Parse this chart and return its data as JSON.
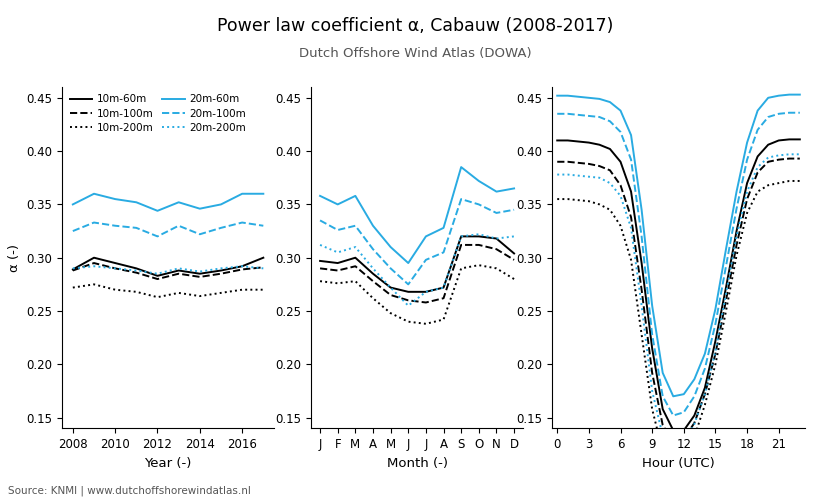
{
  "title": "Power law coefficient α, Cabauw (2008-2017)",
  "subtitle": "Dutch Offshore Wind Atlas (DOWA)",
  "source": "Source: KNMI | www.dutchoffshorewindatlas.nl",
  "ylabel": "α (-)",
  "ylim": [
    0.14,
    0.46
  ],
  "yticks": [
    0.15,
    0.2,
    0.25,
    0.3,
    0.35,
    0.4,
    0.45
  ],
  "panel1": {
    "xlabel": "Year (-)",
    "xticks": [
      2008,
      2010,
      2012,
      2014,
      2016
    ],
    "x": [
      2008,
      2009,
      2010,
      2011,
      2012,
      2013,
      2014,
      2015,
      2016,
      2017
    ],
    "black_solid": [
      0.289,
      0.3,
      0.295,
      0.29,
      0.283,
      0.288,
      0.285,
      0.288,
      0.292,
      0.3
    ],
    "black_dashed": [
      0.288,
      0.295,
      0.29,
      0.286,
      0.28,
      0.285,
      0.282,
      0.285,
      0.289,
      0.291
    ],
    "black_dotted": [
      0.272,
      0.275,
      0.27,
      0.268,
      0.263,
      0.267,
      0.264,
      0.267,
      0.27,
      0.27
    ],
    "cyan_solid": [
      0.35,
      0.36,
      0.355,
      0.352,
      0.344,
      0.352,
      0.346,
      0.35,
      0.36,
      0.36
    ],
    "cyan_dashed": [
      0.325,
      0.333,
      0.33,
      0.328,
      0.32,
      0.33,
      0.322,
      0.328,
      0.333,
      0.33
    ],
    "cyan_dotted": [
      0.29,
      0.292,
      0.29,
      0.288,
      0.285,
      0.29,
      0.287,
      0.29,
      0.292,
      0.29
    ]
  },
  "panel2": {
    "xlabel": "Month (-)",
    "xlabels": [
      "J",
      "F",
      "M",
      "A",
      "M",
      "J",
      "J",
      "A",
      "S",
      "O",
      "N",
      "D"
    ],
    "x": [
      0,
      1,
      2,
      3,
      4,
      5,
      6,
      7,
      8,
      9,
      10,
      11
    ],
    "black_solid": [
      0.297,
      0.295,
      0.3,
      0.285,
      0.272,
      0.268,
      0.268,
      0.272,
      0.32,
      0.32,
      0.318,
      0.304
    ],
    "black_dashed": [
      0.29,
      0.288,
      0.292,
      0.278,
      0.265,
      0.26,
      0.258,
      0.262,
      0.312,
      0.312,
      0.308,
      0.298
    ],
    "black_dotted": [
      0.278,
      0.276,
      0.278,
      0.262,
      0.248,
      0.24,
      0.238,
      0.242,
      0.29,
      0.293,
      0.29,
      0.28
    ],
    "cyan_solid": [
      0.358,
      0.35,
      0.358,
      0.33,
      0.31,
      0.295,
      0.32,
      0.328,
      0.385,
      0.372,
      0.362,
      0.365
    ],
    "cyan_dashed": [
      0.335,
      0.326,
      0.33,
      0.308,
      0.29,
      0.275,
      0.298,
      0.305,
      0.355,
      0.35,
      0.342,
      0.345
    ],
    "cyan_dotted": [
      0.312,
      0.305,
      0.31,
      0.29,
      0.272,
      0.255,
      0.268,
      0.272,
      0.32,
      0.322,
      0.318,
      0.32
    ]
  },
  "panel3": {
    "xlabel": "Hour (UTC)",
    "xticks": [
      0,
      3,
      6,
      9,
      12,
      15,
      18,
      21
    ],
    "x": [
      0,
      1,
      2,
      3,
      4,
      5,
      6,
      7,
      8,
      9,
      10,
      11,
      12,
      13,
      14,
      15,
      16,
      17,
      18,
      19,
      20,
      21,
      22,
      23
    ],
    "black_solid": [
      0.41,
      0.41,
      0.409,
      0.408,
      0.406,
      0.402,
      0.39,
      0.362,
      0.295,
      0.215,
      0.158,
      0.138,
      0.138,
      0.152,
      0.178,
      0.222,
      0.272,
      0.325,
      0.37,
      0.395,
      0.406,
      0.41,
      0.411,
      0.411
    ],
    "black_dashed": [
      0.39,
      0.39,
      0.389,
      0.388,
      0.386,
      0.382,
      0.368,
      0.338,
      0.27,
      0.192,
      0.143,
      0.127,
      0.13,
      0.145,
      0.172,
      0.21,
      0.26,
      0.312,
      0.355,
      0.38,
      0.39,
      0.392,
      0.393,
      0.393
    ],
    "black_dotted": [
      0.355,
      0.355,
      0.354,
      0.353,
      0.35,
      0.345,
      0.33,
      0.298,
      0.228,
      0.158,
      0.118,
      0.108,
      0.115,
      0.132,
      0.162,
      0.2,
      0.25,
      0.302,
      0.342,
      0.362,
      0.368,
      0.37,
      0.372,
      0.372
    ],
    "cyan_solid": [
      0.452,
      0.452,
      0.451,
      0.45,
      0.449,
      0.446,
      0.438,
      0.415,
      0.345,
      0.255,
      0.192,
      0.17,
      0.172,
      0.186,
      0.21,
      0.252,
      0.308,
      0.362,
      0.408,
      0.438,
      0.45,
      0.452,
      0.453,
      0.453
    ],
    "cyan_dashed": [
      0.435,
      0.435,
      0.434,
      0.433,
      0.432,
      0.428,
      0.418,
      0.392,
      0.32,
      0.228,
      0.17,
      0.152,
      0.155,
      0.17,
      0.196,
      0.238,
      0.292,
      0.346,
      0.392,
      0.42,
      0.432,
      0.435,
      0.436,
      0.436
    ],
    "cyan_dotted": [
      0.378,
      0.378,
      0.377,
      0.376,
      0.375,
      0.37,
      0.358,
      0.328,
      0.255,
      0.175,
      0.133,
      0.12,
      0.126,
      0.144,
      0.172,
      0.212,
      0.266,
      0.32,
      0.362,
      0.385,
      0.394,
      0.396,
      0.397,
      0.397
    ]
  },
  "colors": {
    "black": "#000000",
    "cyan": "#29ABE2"
  },
  "legend": [
    {
      "label": "10m-60m",
      "color": "black",
      "ls": "solid"
    },
    {
      "label": "10m-100m",
      "color": "black",
      "ls": "dashed"
    },
    {
      "label": "10m-200m",
      "color": "black",
      "ls": "dotted"
    },
    {
      "label": "20m-60m",
      "color": "cyan",
      "ls": "solid"
    },
    {
      "label": "20m-100m",
      "color": "cyan",
      "ls": "dashed"
    },
    {
      "label": "20m-200m",
      "color": "cyan",
      "ls": "dotted"
    }
  ]
}
